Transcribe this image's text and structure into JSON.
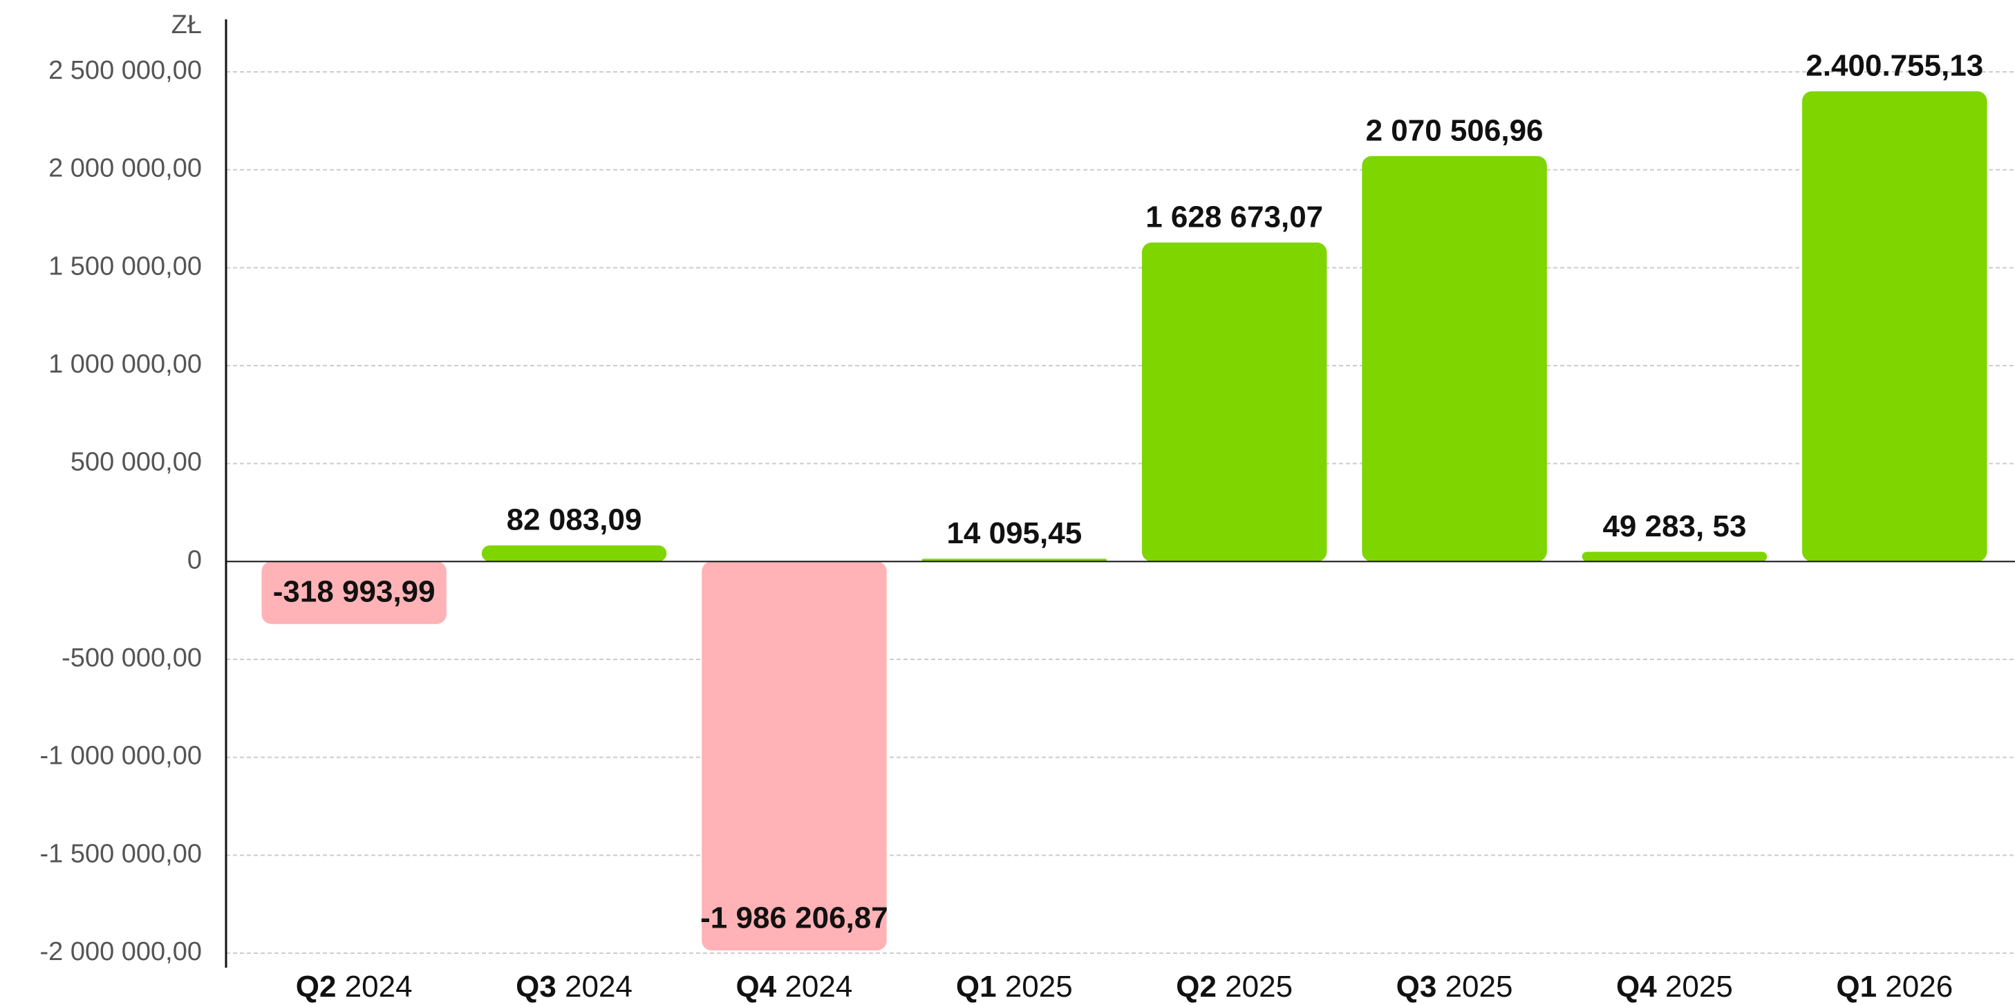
{
  "chart_data": {
    "type": "bar",
    "unit_label": "ZŁ",
    "categories": [
      "Q2 2024",
      "Q3 2024",
      "Q4 2024",
      "Q1 2025",
      "Q2 2025",
      "Q3 2025",
      "Q4 2025",
      "Q1 2026"
    ],
    "values": [
      -318993.99,
      82083.09,
      -1986206.87,
      14095.45,
      1628673.07,
      2070506.96,
      49283.53,
      2400755.13
    ],
    "value_labels": [
      "-318 993,99",
      "82 083,09",
      "-1 986 206,87",
      "14 095,45",
      "1 628 673,07",
      "2 070 506,96",
      "49 283, 53",
      "2.400.755,13"
    ],
    "colors": {
      "positive": "#7ed500",
      "negative": "#ffb3b6"
    },
    "ylim": [
      -2000000,
      2500000
    ],
    "yticks": [
      {
        "value": -2000000,
        "label": "-2 000 000,00"
      },
      {
        "value": -1500000,
        "label": "-1 500 000,00"
      },
      {
        "value": -1000000,
        "label": "-1 000 000,00"
      },
      {
        "value": -500000,
        "label": "-500 000,00"
      },
      0,
      {
        "value": 500000,
        "label": "500 000,00"
      },
      {
        "value": 1000000,
        "label": "1 000 000,00"
      },
      {
        "value": 1500000,
        "label": "1 500 000,00"
      },
      {
        "value": 2000000,
        "label": "2 000 000,00"
      },
      {
        "value": 2500000,
        "label": "2 500 000,00"
      }
    ],
    "grid": true
  }
}
